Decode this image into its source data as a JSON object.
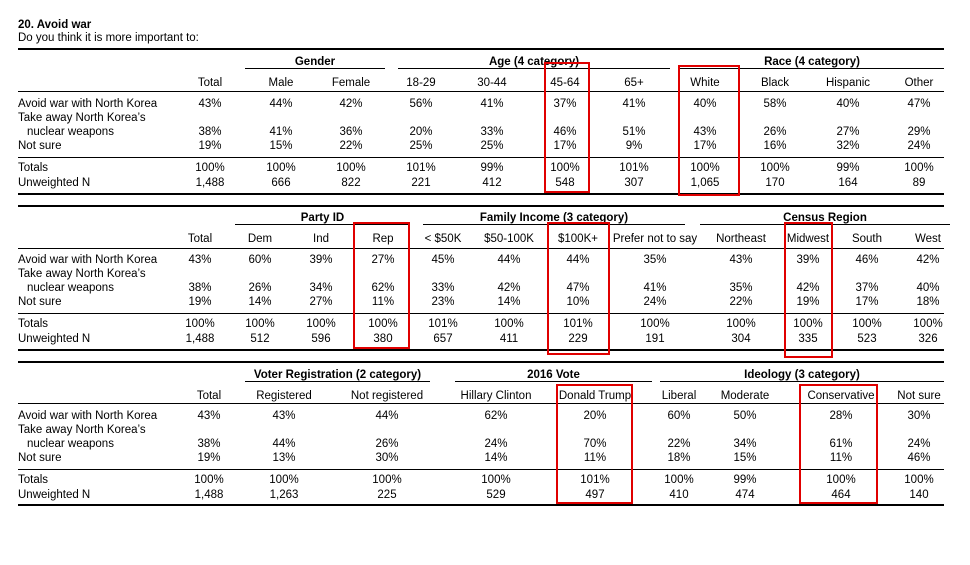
{
  "heading": {
    "number_title": "20. Avoid war",
    "question": "Do you think it is more important to:"
  },
  "row_labels": {
    "avoid": "Avoid war with North Korea",
    "take_line1": "Take away North Korea’s",
    "take_line2": "nuclear weapons",
    "not_sure": "Not sure",
    "totals": "Totals",
    "unweighted": "Unweighted N"
  },
  "tables": [
    {
      "groups": [
        {
          "label": "Gender",
          "span": [
            1,
            2
          ]
        },
        {
          "label": "Age (4 category)",
          "span": [
            3,
            6
          ]
        },
        {
          "label": "Race (4 category)",
          "span": [
            7,
            10
          ]
        }
      ],
      "columns": [
        {
          "header": "Total",
          "values": [
            "43%",
            "38%",
            "19%",
            "100%",
            "1,488"
          ]
        },
        {
          "header": "Male",
          "values": [
            "44%",
            "41%",
            "15%",
            "100%",
            "666"
          ]
        },
        {
          "header": "Female",
          "values": [
            "42%",
            "36%",
            "22%",
            "100%",
            "822"
          ]
        },
        {
          "header": "18-29",
          "values": [
            "56%",
            "20%",
            "25%",
            "101%",
            "221"
          ]
        },
        {
          "header": "30-44",
          "values": [
            "41%",
            "33%",
            "25%",
            "99%",
            "412"
          ]
        },
        {
          "header": "45-64",
          "values": [
            "37%",
            "46%",
            "17%",
            "100%",
            "548"
          ]
        },
        {
          "header": "65+",
          "values": [
            "41%",
            "51%",
            "9%",
            "101%",
            "307"
          ]
        },
        {
          "header": "White",
          "values": [
            "40%",
            "43%",
            "17%",
            "100%",
            "1,065"
          ]
        },
        {
          "header": "Black",
          "values": [
            "58%",
            "26%",
            "16%",
            "100%",
            "170"
          ]
        },
        {
          "header": "Hispanic",
          "values": [
            "40%",
            "27%",
            "32%",
            "99%",
            "164"
          ]
        },
        {
          "header": "Other",
          "values": [
            "47%",
            "29%",
            "24%",
            "100%",
            "89"
          ]
        }
      ]
    },
    {
      "groups": [
        {
          "label": "Party ID",
          "span": [
            1,
            3
          ]
        },
        {
          "label": "Family Income (3 category)",
          "span": [
            4,
            7
          ]
        },
        {
          "label": "Census Region",
          "span": [
            8,
            11
          ]
        }
      ],
      "columns": [
        {
          "header": "Total",
          "values": [
            "43%",
            "38%",
            "19%",
            "100%",
            "1,488"
          ]
        },
        {
          "header": "Dem",
          "values": [
            "60%",
            "26%",
            "14%",
            "100%",
            "512"
          ]
        },
        {
          "header": "Ind",
          "values": [
            "39%",
            "34%",
            "27%",
            "100%",
            "596"
          ]
        },
        {
          "header": "Rep",
          "values": [
            "27%",
            "62%",
            "11%",
            "100%",
            "380"
          ]
        },
        {
          "header": "< $50K",
          "values": [
            "45%",
            "33%",
            "23%",
            "101%",
            "657"
          ]
        },
        {
          "header": "$50-100K",
          "values": [
            "44%",
            "42%",
            "14%",
            "100%",
            "411"
          ]
        },
        {
          "header": "$100K+",
          "values": [
            "44%",
            "47%",
            "10%",
            "101%",
            "229"
          ]
        },
        {
          "header": "Prefer not to say",
          "values": [
            "35%",
            "41%",
            "24%",
            "100%",
            "191"
          ]
        },
        {
          "header": "Northeast",
          "values": [
            "43%",
            "35%",
            "22%",
            "100%",
            "304"
          ]
        },
        {
          "header": "Midwest",
          "values": [
            "39%",
            "42%",
            "19%",
            "100%",
            "335"
          ]
        },
        {
          "header": "South",
          "values": [
            "46%",
            "37%",
            "17%",
            "100%",
            "523"
          ]
        },
        {
          "header": "West",
          "values": [
            "42%",
            "40%",
            "18%",
            "100%",
            "326"
          ]
        }
      ]
    },
    {
      "groups": [
        {
          "label": "Voter Registration (2 category)",
          "span": [
            1,
            2
          ]
        },
        {
          "label": "2016 Vote",
          "span": [
            3,
            4
          ]
        },
        {
          "label": "Ideology (3 category)",
          "span": [
            5,
            8
          ]
        }
      ],
      "columns": [
        {
          "header": "Total",
          "values": [
            "43%",
            "38%",
            "19%",
            "100%",
            "1,488"
          ]
        },
        {
          "header": "Registered",
          "values": [
            "43%",
            "44%",
            "13%",
            "100%",
            "1,263"
          ]
        },
        {
          "header": "Not registered",
          "values": [
            "44%",
            "26%",
            "30%",
            "100%",
            "225"
          ]
        },
        {
          "header": "Hillary Clinton",
          "values": [
            "62%",
            "24%",
            "14%",
            "100%",
            "529"
          ]
        },
        {
          "header": "Donald Trump",
          "values": [
            "20%",
            "70%",
            "11%",
            "101%",
            "497"
          ]
        },
        {
          "header": "Liberal",
          "values": [
            "60%",
            "22%",
            "18%",
            "100%",
            "410"
          ]
        },
        {
          "header": "Moderate",
          "values": [
            "50%",
            "34%",
            "15%",
            "99%",
            "474"
          ]
        },
        {
          "header": "Conservative",
          "values": [
            "28%",
            "61%",
            "11%",
            "100%",
            "464"
          ]
        },
        {
          "header": "Not sure",
          "values": [
            "30%",
            "24%",
            "46%",
            "100%",
            "140"
          ]
        }
      ]
    }
  ],
  "highlight_color": "#e00000"
}
